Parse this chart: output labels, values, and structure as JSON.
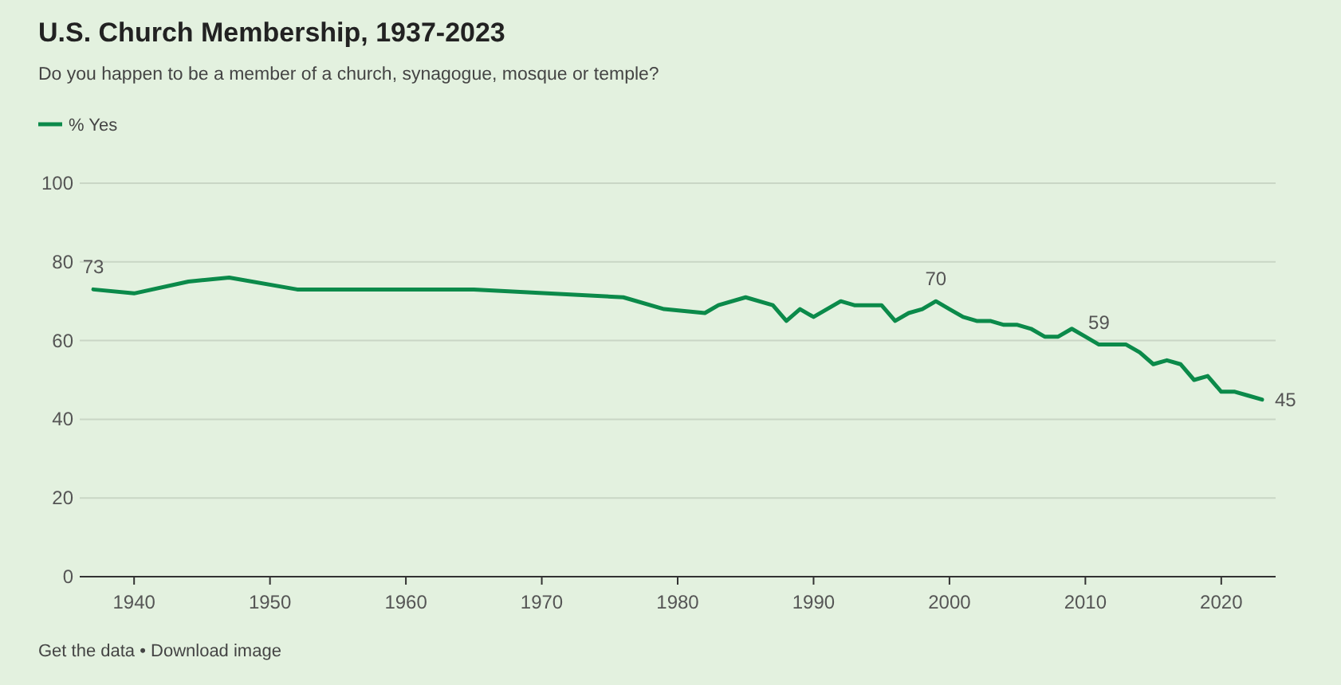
{
  "chart_data": {
    "type": "line",
    "title": "U.S. Church Membership, 1937-2023",
    "subtitle": "Do you happen to be a member of a church, synagogue, mosque or temple?",
    "x": [
      1937,
      1940,
      1944,
      1947,
      1952,
      1965,
      1976,
      1979,
      1982,
      1983,
      1985,
      1987,
      1988,
      1989,
      1990,
      1992,
      1993,
      1994,
      1995,
      1996,
      1997,
      1998,
      1999,
      2000,
      2001,
      2002,
      2003,
      2004,
      2005,
      2006,
      2007,
      2008,
      2009,
      2010,
      2011,
      2012,
      2013,
      2014,
      2015,
      2016,
      2017,
      2018,
      2019,
      2020,
      2021,
      2022,
      2023
    ],
    "series": [
      {
        "name": "% Yes",
        "color": "#0b8a4a",
        "values": [
          73,
          72,
          75,
          76,
          73,
          73,
          71,
          68,
          67,
          69,
          71,
          69,
          65,
          68,
          66,
          70,
          69,
          69,
          69,
          65,
          67,
          68,
          70,
          68,
          66,
          65,
          65,
          64,
          64,
          63,
          61,
          61,
          63,
          61,
          59,
          59,
          59,
          57,
          54,
          55,
          54,
          50,
          51,
          47,
          47,
          46,
          45
        ],
        "value_labels": [
          "73",
          null,
          null,
          null,
          null,
          null,
          null,
          null,
          null,
          null,
          null,
          null,
          null,
          null,
          null,
          null,
          null,
          null,
          null,
          null,
          null,
          null,
          "70",
          null,
          null,
          null,
          null,
          null,
          null,
          null,
          null,
          null,
          null,
          null,
          "59",
          null,
          null,
          null,
          null,
          null,
          null,
          null,
          null,
          null,
          null,
          null,
          "45"
        ]
      }
    ],
    "xlim": [
      1936,
      2024
    ],
    "xticks": [
      1940,
      1950,
      1960,
      1970,
      1980,
      1990,
      2000,
      2010,
      2020
    ],
    "ylim": [
      0,
      100
    ],
    "yticks": [
      0,
      20,
      40,
      60,
      80,
      100
    ],
    "grid": "y",
    "legend": "top left",
    "marker": "none",
    "line_style": "solid",
    "annotations": [
      "Get the data • Download image"
    ]
  }
}
